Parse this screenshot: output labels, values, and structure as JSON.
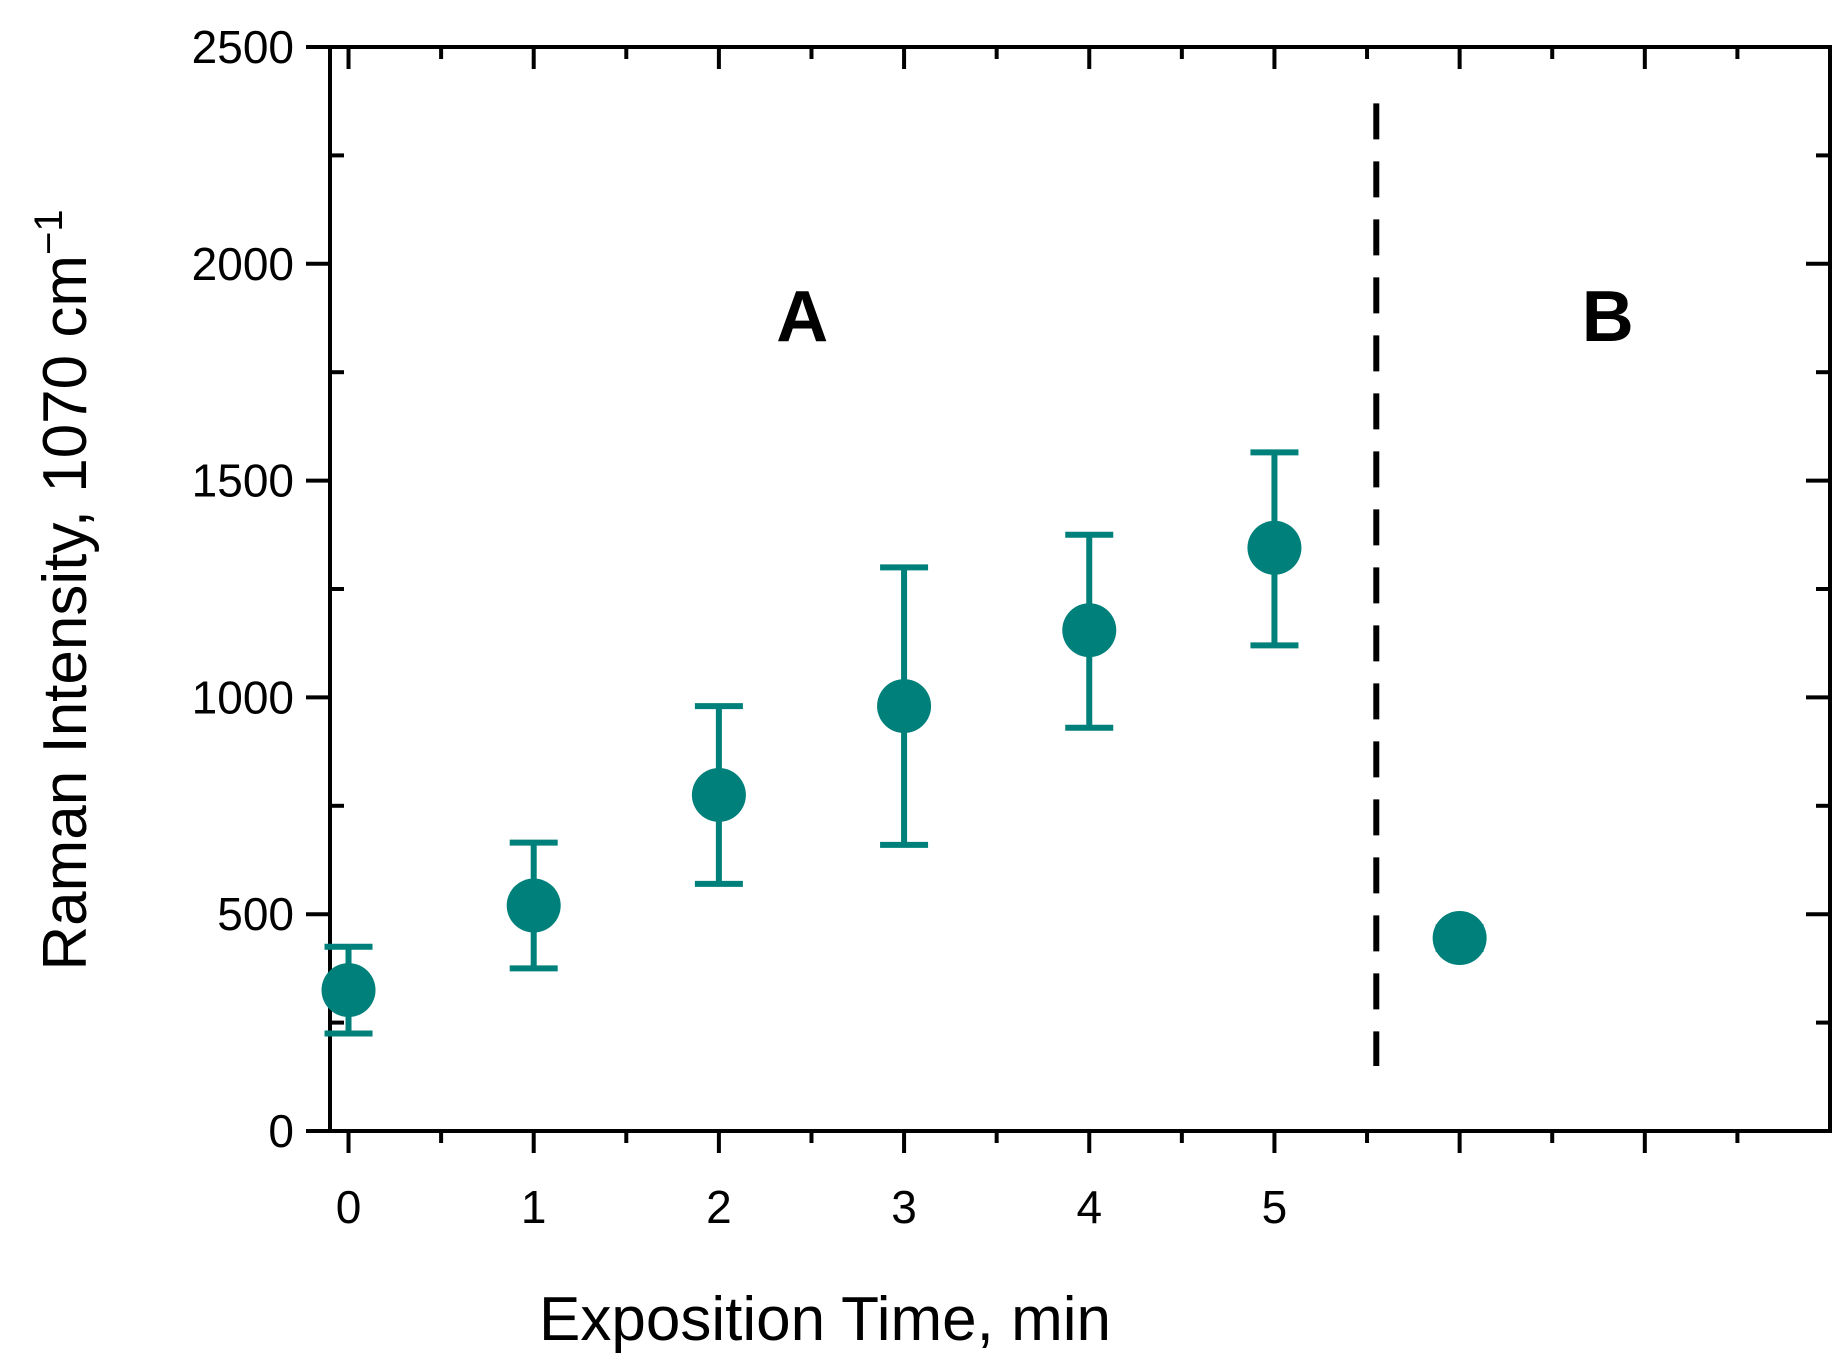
{
  "chart_data": {
    "type": "scatter",
    "xlabel": "Exposition Time, min",
    "ylabel_main": "Raman Intensity, 1070 cm",
    "ylabel_sup": "−1",
    "ylim": [
      0,
      2500
    ],
    "xlim": [
      -0.1,
      8.0
    ],
    "y_ticks": [
      "0",
      "500",
      "1000",
      "1500",
      "2000",
      "2500"
    ],
    "x_tick_labels": [
      {
        "x": 0,
        "label": "0"
      },
      {
        "x": 1,
        "label": "1"
      },
      {
        "x": 2,
        "label": "2"
      },
      {
        "x": 3,
        "label": "3"
      },
      {
        "x": 4,
        "label": "4"
      },
      {
        "x": 5,
        "label": "5"
      }
    ],
    "x_major_ticks": [
      0,
      1,
      2,
      3,
      4,
      5,
      6,
      7
    ],
    "x_minor_ticks": [
      0.5,
      1.5,
      2.5,
      3.5,
      4.5,
      5.5,
      6.5,
      7.5
    ],
    "y_minor_ticks": [
      250,
      750,
      1250,
      1750,
      2250
    ],
    "marker_color": "#00807A",
    "series": [
      {
        "points": [
          {
            "x": 0,
            "y": 325,
            "ylow": 225,
            "yhigh": 425
          },
          {
            "x": 1,
            "y": 520,
            "ylow": 375,
            "yhigh": 665
          },
          {
            "x": 2,
            "y": 775,
            "ylow": 570,
            "yhigh": 980
          },
          {
            "x": 3,
            "y": 980,
            "ylow": 660,
            "yhigh": 1300
          },
          {
            "x": 4,
            "y": 1155,
            "ylow": 930,
            "yhigh": 1375
          },
          {
            "x": 5,
            "y": 1345,
            "ylow": 1120,
            "yhigh": 1565
          },
          {
            "x": 6,
            "y": 445,
            "ylow": 420,
            "yhigh": 470
          }
        ]
      }
    ],
    "divider_x": 5.55,
    "divider_y_range": [
      150,
      2370
    ],
    "panel_labels": [
      {
        "text": "A",
        "x": 2.45,
        "y": 1880
      },
      {
        "text": "B",
        "x": 6.8,
        "y": 1880
      }
    ]
  }
}
